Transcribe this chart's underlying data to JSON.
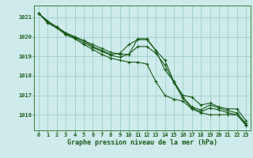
{
  "title": "Graphe pression niveau de la mer (hPa)",
  "background_color": "#ceeaea",
  "grid_color": "#9ecece",
  "line_color": "#1a5c1a",
  "spine_color": "#3a7a3a",
  "xlim": [
    -0.5,
    23.5
  ],
  "ylim": [
    1015.2,
    1021.6
  ],
  "yticks": [
    1016,
    1017,
    1018,
    1019,
    1020,
    1021
  ],
  "xticks": [
    0,
    1,
    2,
    3,
    4,
    5,
    6,
    7,
    8,
    9,
    10,
    11,
    12,
    13,
    14,
    15,
    16,
    17,
    18,
    19,
    20,
    21,
    22,
    23
  ],
  "series": [
    [
      1021.2,
      1020.8,
      1020.5,
      1020.2,
      1020.0,
      1019.8,
      1019.6,
      1019.4,
      1019.2,
      1019.1,
      1019.1,
      1019.9,
      1019.9,
      1019.3,
      1018.3,
      1017.7,
      1017.0,
      1016.9,
      1016.5,
      1016.6,
      1016.4,
      1016.3,
      1016.3,
      1015.7
    ],
    [
      1021.2,
      1020.8,
      1020.5,
      1020.2,
      1020.0,
      1019.8,
      1019.5,
      1019.3,
      1019.1,
      1019.15,
      1019.6,
      1019.85,
      1019.85,
      1019.3,
      1018.8,
      1017.7,
      1016.9,
      1016.4,
      1016.25,
      1016.5,
      1016.35,
      1016.2,
      1016.1,
      1015.55
    ],
    [
      1021.2,
      1020.75,
      1020.5,
      1020.15,
      1019.95,
      1019.7,
      1019.45,
      1019.25,
      1019.05,
      1018.95,
      1019.1,
      1019.5,
      1019.5,
      1019.15,
      1018.55,
      1017.65,
      1016.85,
      1016.35,
      1016.15,
      1016.35,
      1016.25,
      1016.1,
      1016.0,
      1015.45
    ],
    [
      1021.2,
      1020.7,
      1020.45,
      1020.1,
      1019.9,
      1019.6,
      1019.35,
      1019.1,
      1018.9,
      1018.8,
      1018.7,
      1018.7,
      1018.6,
      1017.7,
      1017.0,
      1016.8,
      1016.7,
      1016.3,
      1016.1,
      1016.0,
      1016.0,
      1016.0,
      1016.0,
      1015.5
    ]
  ],
  "title_fontsize": 6.0,
  "tick_fontsize": 5.0
}
